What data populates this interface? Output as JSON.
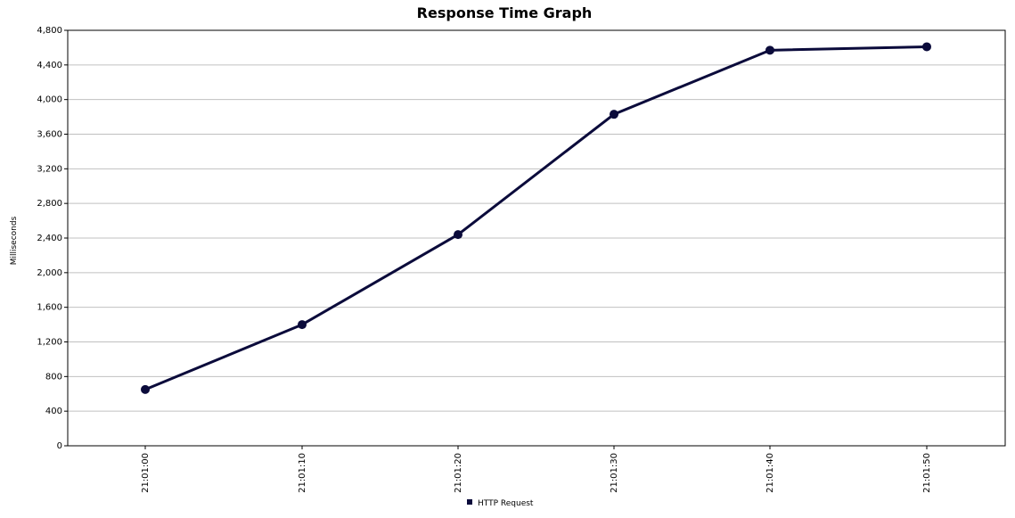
{
  "chart_data": {
    "type": "line",
    "title": "Response Time Graph",
    "xlabel": "",
    "ylabel": "Milliseconds",
    "x": [
      "21:01:00",
      "21:01:10",
      "21:01:20",
      "21:01:30",
      "21:01:40",
      "21:01:50"
    ],
    "series": [
      {
        "name": "HTTP Request",
        "color": "#0b0b3b",
        "values": [
          650,
          1400,
          2440,
          3830,
          4570,
          4610
        ]
      }
    ],
    "ylim": [
      0,
      4800
    ],
    "yticks": [
      0,
      400,
      800,
      1200,
      1600,
      2000,
      2400,
      2800,
      3200,
      3600,
      4000,
      4400,
      4800
    ],
    "ytick_labels": [
      "0",
      "400",
      "800",
      "1,200",
      "1,600",
      "2,000",
      "2,400",
      "2,800",
      "3,200",
      "3,600",
      "4,000",
      "4,400",
      "4,800"
    ],
    "grid": true,
    "legend": "bottom-center",
    "colors": {
      "background": "#ffffff",
      "grid": "#c0c0c0",
      "axis": "#000000"
    }
  }
}
